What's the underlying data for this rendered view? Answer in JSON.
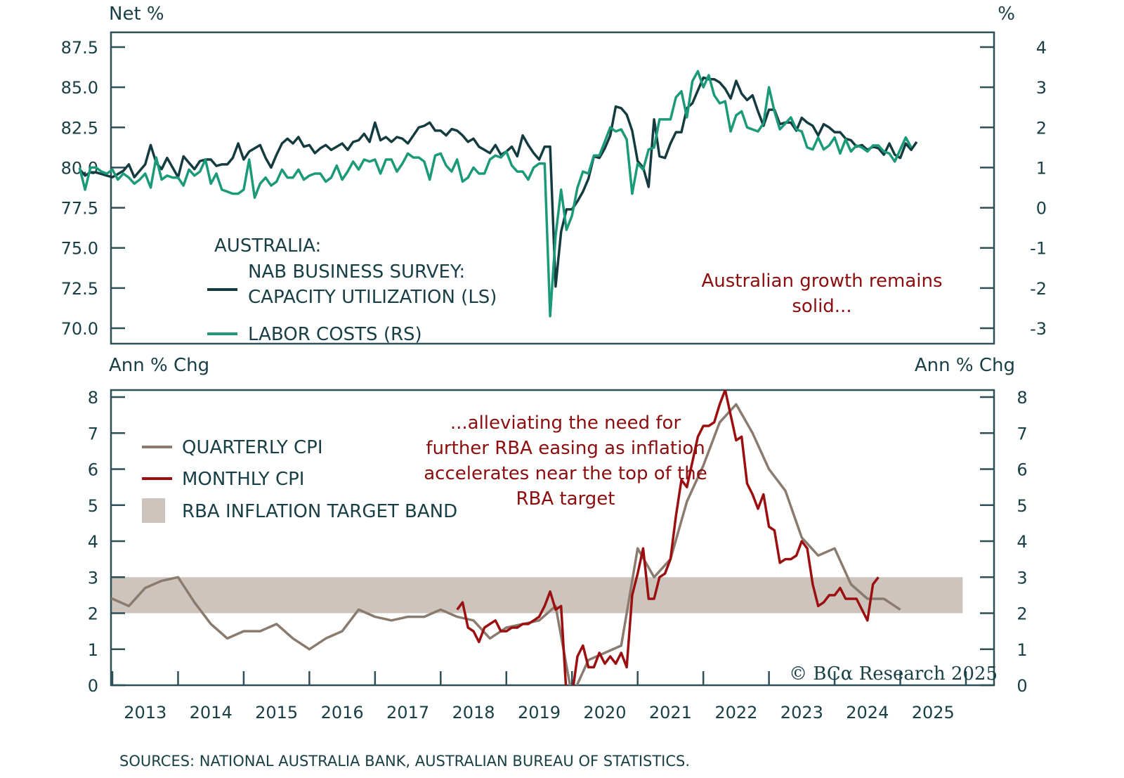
{
  "colors": {
    "axis": "#2d4f56",
    "text": "#173f45",
    "nab": "#143c40",
    "labor": "#1a9a78",
    "quarterly_cpi": "#8a7b6e",
    "monthly_cpi": "#9b0f10",
    "target_band": "#cdc5bd",
    "annotation": "#8b0d0d"
  },
  "source": "SOURCES: NATIONAL AUSTRALIA BANK, AUSTRALIAN BUREAU OF STATISTICS.",
  "copyright": "© BCα Research 2025",
  "chart_data": [
    {
      "type": "line",
      "panel": "top",
      "title": "",
      "ylabel_left": "Net %",
      "ylabel_right": "%",
      "ylim_left": [
        70.0,
        87.5
      ],
      "ylim_right": [
        -3,
        4
      ],
      "yticks_left": [
        "87.5",
        "85.0",
        "82.5",
        "80.0",
        "77.5",
        "75.0",
        "72.5",
        "70.0"
      ],
      "yticks_right": [
        "4",
        "3",
        "2",
        "1",
        "0",
        "-1",
        "-2",
        "-3"
      ],
      "xlim": [
        2012.5,
        2026.0
      ],
      "legend": {
        "heading": "AUSTRALIA:",
        "placement": "bottom-left",
        "entries": [
          {
            "label_lines": [
              "NAB BUSINESS SURVEY:",
              "CAPACITY UTILIZATION (LS)"
            ],
            "series": "nab"
          },
          {
            "label_lines": [
              "LABOR COSTS (RS)"
            ],
            "series": "labor"
          }
        ]
      },
      "annotation": {
        "lines": [
          "Australian growth remains",
          "solid..."
        ],
        "placement": "bottom-right"
      },
      "series": [
        {
          "name": "NAB Business Survey: Capacity Utilization",
          "key": "nab",
          "axis": "left",
          "x_start": 2012.5,
          "x_step": 0.0833333,
          "values": [
            79.9,
            79.5,
            79.7,
            79.7,
            79.6,
            79.5,
            79.4,
            79.6,
            79.8,
            80.2,
            79.4,
            79.8,
            80.2,
            81.4,
            80.3,
            79.9,
            80.6,
            80.0,
            79.4,
            80.7,
            80.3,
            79.9,
            80.4,
            80.5,
            80.5,
            80.1,
            80.2,
            80.2,
            80.6,
            81.5,
            80.5,
            81.0,
            81.2,
            81.4,
            80.6,
            80.0,
            80.8,
            81.5,
            81.8,
            81.5,
            81.9,
            81.3,
            81.4,
            80.9,
            81.2,
            81.4,
            81.1,
            81.3,
            81.5,
            81.1,
            81.6,
            81.7,
            82.1,
            81.6,
            82.8,
            81.7,
            81.9,
            81.6,
            81.9,
            81.8,
            81.5,
            82.0,
            82.5,
            82.6,
            82.8,
            82.3,
            82.3,
            82.0,
            82.4,
            82.3,
            82.0,
            81.6,
            81.8,
            81.3,
            81.1,
            80.9,
            81.4,
            80.8,
            81.0,
            81.3,
            80.7,
            82.0,
            81.4,
            80.9,
            80.5,
            81.3,
            81.3,
            72.6,
            76.0,
            77.4,
            77.4,
            77.9,
            78.5,
            79.3,
            80.7,
            80.6,
            81.2,
            82.0,
            83.8,
            83.7,
            83.3,
            82.3,
            80.4,
            80.0,
            78.8,
            83.0,
            80.7,
            80.6,
            81.5,
            82.2,
            82.2,
            83.7,
            84.0,
            84.8,
            85.6,
            85.5,
            85.5,
            85.3,
            84.9,
            84.3,
            85.4,
            84.6,
            84.2,
            84.5,
            83.5,
            82.6,
            83.6,
            83.6,
            82.7,
            82.8,
            82.8,
            82.3,
            83.1,
            82.8,
            82.6,
            82.0,
            82.7,
            82.5,
            82.2,
            82.2,
            81.8,
            81.7,
            81.3,
            81.4,
            81.1,
            81.3,
            81.2,
            80.8,
            81.5,
            80.8,
            80.6,
            81.5,
            81.1,
            81.6
          ]
        },
        {
          "name": "Labor Costs",
          "key": "labor",
          "axis": "right",
          "x_start": 2012.5,
          "x_step": 0.0833333,
          "values": [
            1.0,
            0.45,
            1.0,
            1.0,
            0.9,
            0.85,
            0.95,
            0.7,
            0.85,
            0.75,
            0.6,
            0.7,
            0.85,
            0.5,
            1.25,
            0.7,
            0.8,
            0.75,
            0.75,
            0.55,
            0.95,
            0.8,
            0.9,
            1.2,
            0.6,
            0.85,
            0.45,
            0.4,
            0.35,
            0.35,
            0.45,
            1.2,
            0.25,
            0.6,
            0.75,
            0.55,
            0.65,
            0.95,
            0.75,
            0.75,
            0.95,
            0.7,
            0.8,
            0.85,
            0.85,
            0.65,
            0.75,
            1.05,
            0.7,
            0.9,
            1.15,
            0.95,
            1.2,
            1.15,
            1.2,
            0.85,
            1.2,
            1.2,
            0.9,
            1.1,
            1.35,
            1.25,
            1.25,
            1.15,
            0.7,
            1.3,
            1.35,
            1.05,
            0.9,
            1.2,
            0.65,
            0.75,
            1.0,
            0.85,
            0.85,
            1.2,
            1.3,
            1.25,
            1.4,
            1.05,
            0.9,
            0.9,
            0.7,
            1.0,
            1.1,
            1.1,
            -2.7,
            -0.7,
            0.45,
            -0.55,
            -0.2,
            0.5,
            0.9,
            0.85,
            1.3,
            1.3,
            1.65,
            2.0,
            1.9,
            1.95,
            1.7,
            0.35,
            1.1,
            0.95,
            1.45,
            1.5,
            2.2,
            2.2,
            2.2,
            2.75,
            2.9,
            2.25,
            3.15,
            3.4,
            3.0,
            3.3,
            2.8,
            2.6,
            2.65,
            1.9,
            2.3,
            2.4,
            2.0,
            1.95,
            1.9,
            2.1,
            3.0,
            2.4,
            1.95,
            2.1,
            2.25,
            1.95,
            1.9,
            1.5,
            1.45,
            1.75,
            1.45,
            1.55,
            1.75,
            1.35,
            1.7,
            1.4,
            1.55,
            1.5,
            1.4,
            1.55,
            1.55,
            1.4,
            1.35,
            1.15,
            1.45,
            1.75,
            1.5
          ]
        }
      ]
    },
    {
      "type": "line",
      "panel": "bottom",
      "title": "",
      "ylabel_left": "Ann % Chg",
      "ylabel_right": "Ann % Chg",
      "ylim": [
        0,
        8
      ],
      "yticks": [
        "8",
        "7",
        "6",
        "5",
        "4",
        "3",
        "2",
        "1",
        "0"
      ],
      "xlim": [
        2012.5,
        2026.0
      ],
      "xticks": [
        "2013",
        "2014",
        "2015",
        "2016",
        "2017",
        "2018",
        "2019",
        "2020",
        "2021",
        "2022",
        "2023",
        "2024",
        "2025"
      ],
      "legend": {
        "placement": "top-left",
        "entries": [
          {
            "label": "QUARTERLY CPI",
            "series": "quarterly"
          },
          {
            "label": "MONTHLY CPI",
            "series": "monthly"
          },
          {
            "label": "RBA INFLATION TARGET BAND",
            "series": "band"
          }
        ]
      },
      "annotation": {
        "lines": [
          "...alleviating the need for",
          "further RBA easing as inflation",
          "accelerates near the top of the",
          "RBA target"
        ],
        "placement": "top-center"
      },
      "band": {
        "name": "RBA Inflation Target Band",
        "low": 2,
        "high": 3,
        "x_range": [
          2012.5,
          2025.95
        ]
      },
      "series": [
        {
          "name": "Quarterly CPI",
          "key": "quarterly",
          "x_start": 2012.5,
          "x_step": 0.25,
          "values": [
            2.2,
            2.5,
            2.4,
            2.2,
            2.7,
            2.9,
            3.0,
            2.3,
            1.7,
            1.3,
            1.5,
            1.5,
            1.7,
            1.3,
            1.0,
            1.3,
            1.5,
            2.1,
            1.9,
            1.8,
            1.9,
            1.9,
            2.1,
            1.9,
            1.8,
            1.3,
            1.6,
            1.7,
            1.8,
            2.2,
            -0.3,
            0.7,
            0.9,
            1.1,
            3.8,
            3.0,
            3.5,
            5.1,
            6.1,
            7.3,
            7.8,
            7.0,
            6.0,
            5.4,
            4.1,
            3.6,
            3.8,
            2.8,
            2.4,
            2.4,
            2.1
          ]
        },
        {
          "name": "Monthly CPI",
          "key": "monthly",
          "x_start": 2018.25,
          "x_step": 0.0833333,
          "values": [
            2.1,
            2.3,
            1.6,
            1.5,
            1.2,
            1.6,
            1.7,
            1.8,
            1.5,
            1.5,
            1.6,
            1.6,
            1.7,
            1.7,
            1.8,
            1.9,
            2.2,
            2.6,
            2.1,
            2.2,
            -0.3,
            -0.3,
            0.8,
            1.1,
            0.5,
            0.5,
            0.9,
            0.6,
            0.8,
            0.6,
            0.9,
            0.5,
            2.5,
            3.1,
            3.8,
            2.4,
            2.4,
            3.0,
            3.1,
            3.5,
            4.7,
            5.7,
            5.5,
            6.2,
            6.9,
            7.2,
            7.2,
            7.3,
            7.8,
            8.2,
            7.5,
            6.8,
            6.9,
            5.6,
            5.3,
            4.9,
            5.3,
            4.4,
            4.3,
            3.4,
            3.5,
            3.5,
            3.6,
            4.0,
            3.8,
            2.8,
            2.2,
            2.3,
            2.5,
            2.5,
            2.7,
            2.4,
            2.4,
            2.4,
            2.1,
            1.8,
            2.8,
            3.0
          ]
        }
      ]
    }
  ]
}
